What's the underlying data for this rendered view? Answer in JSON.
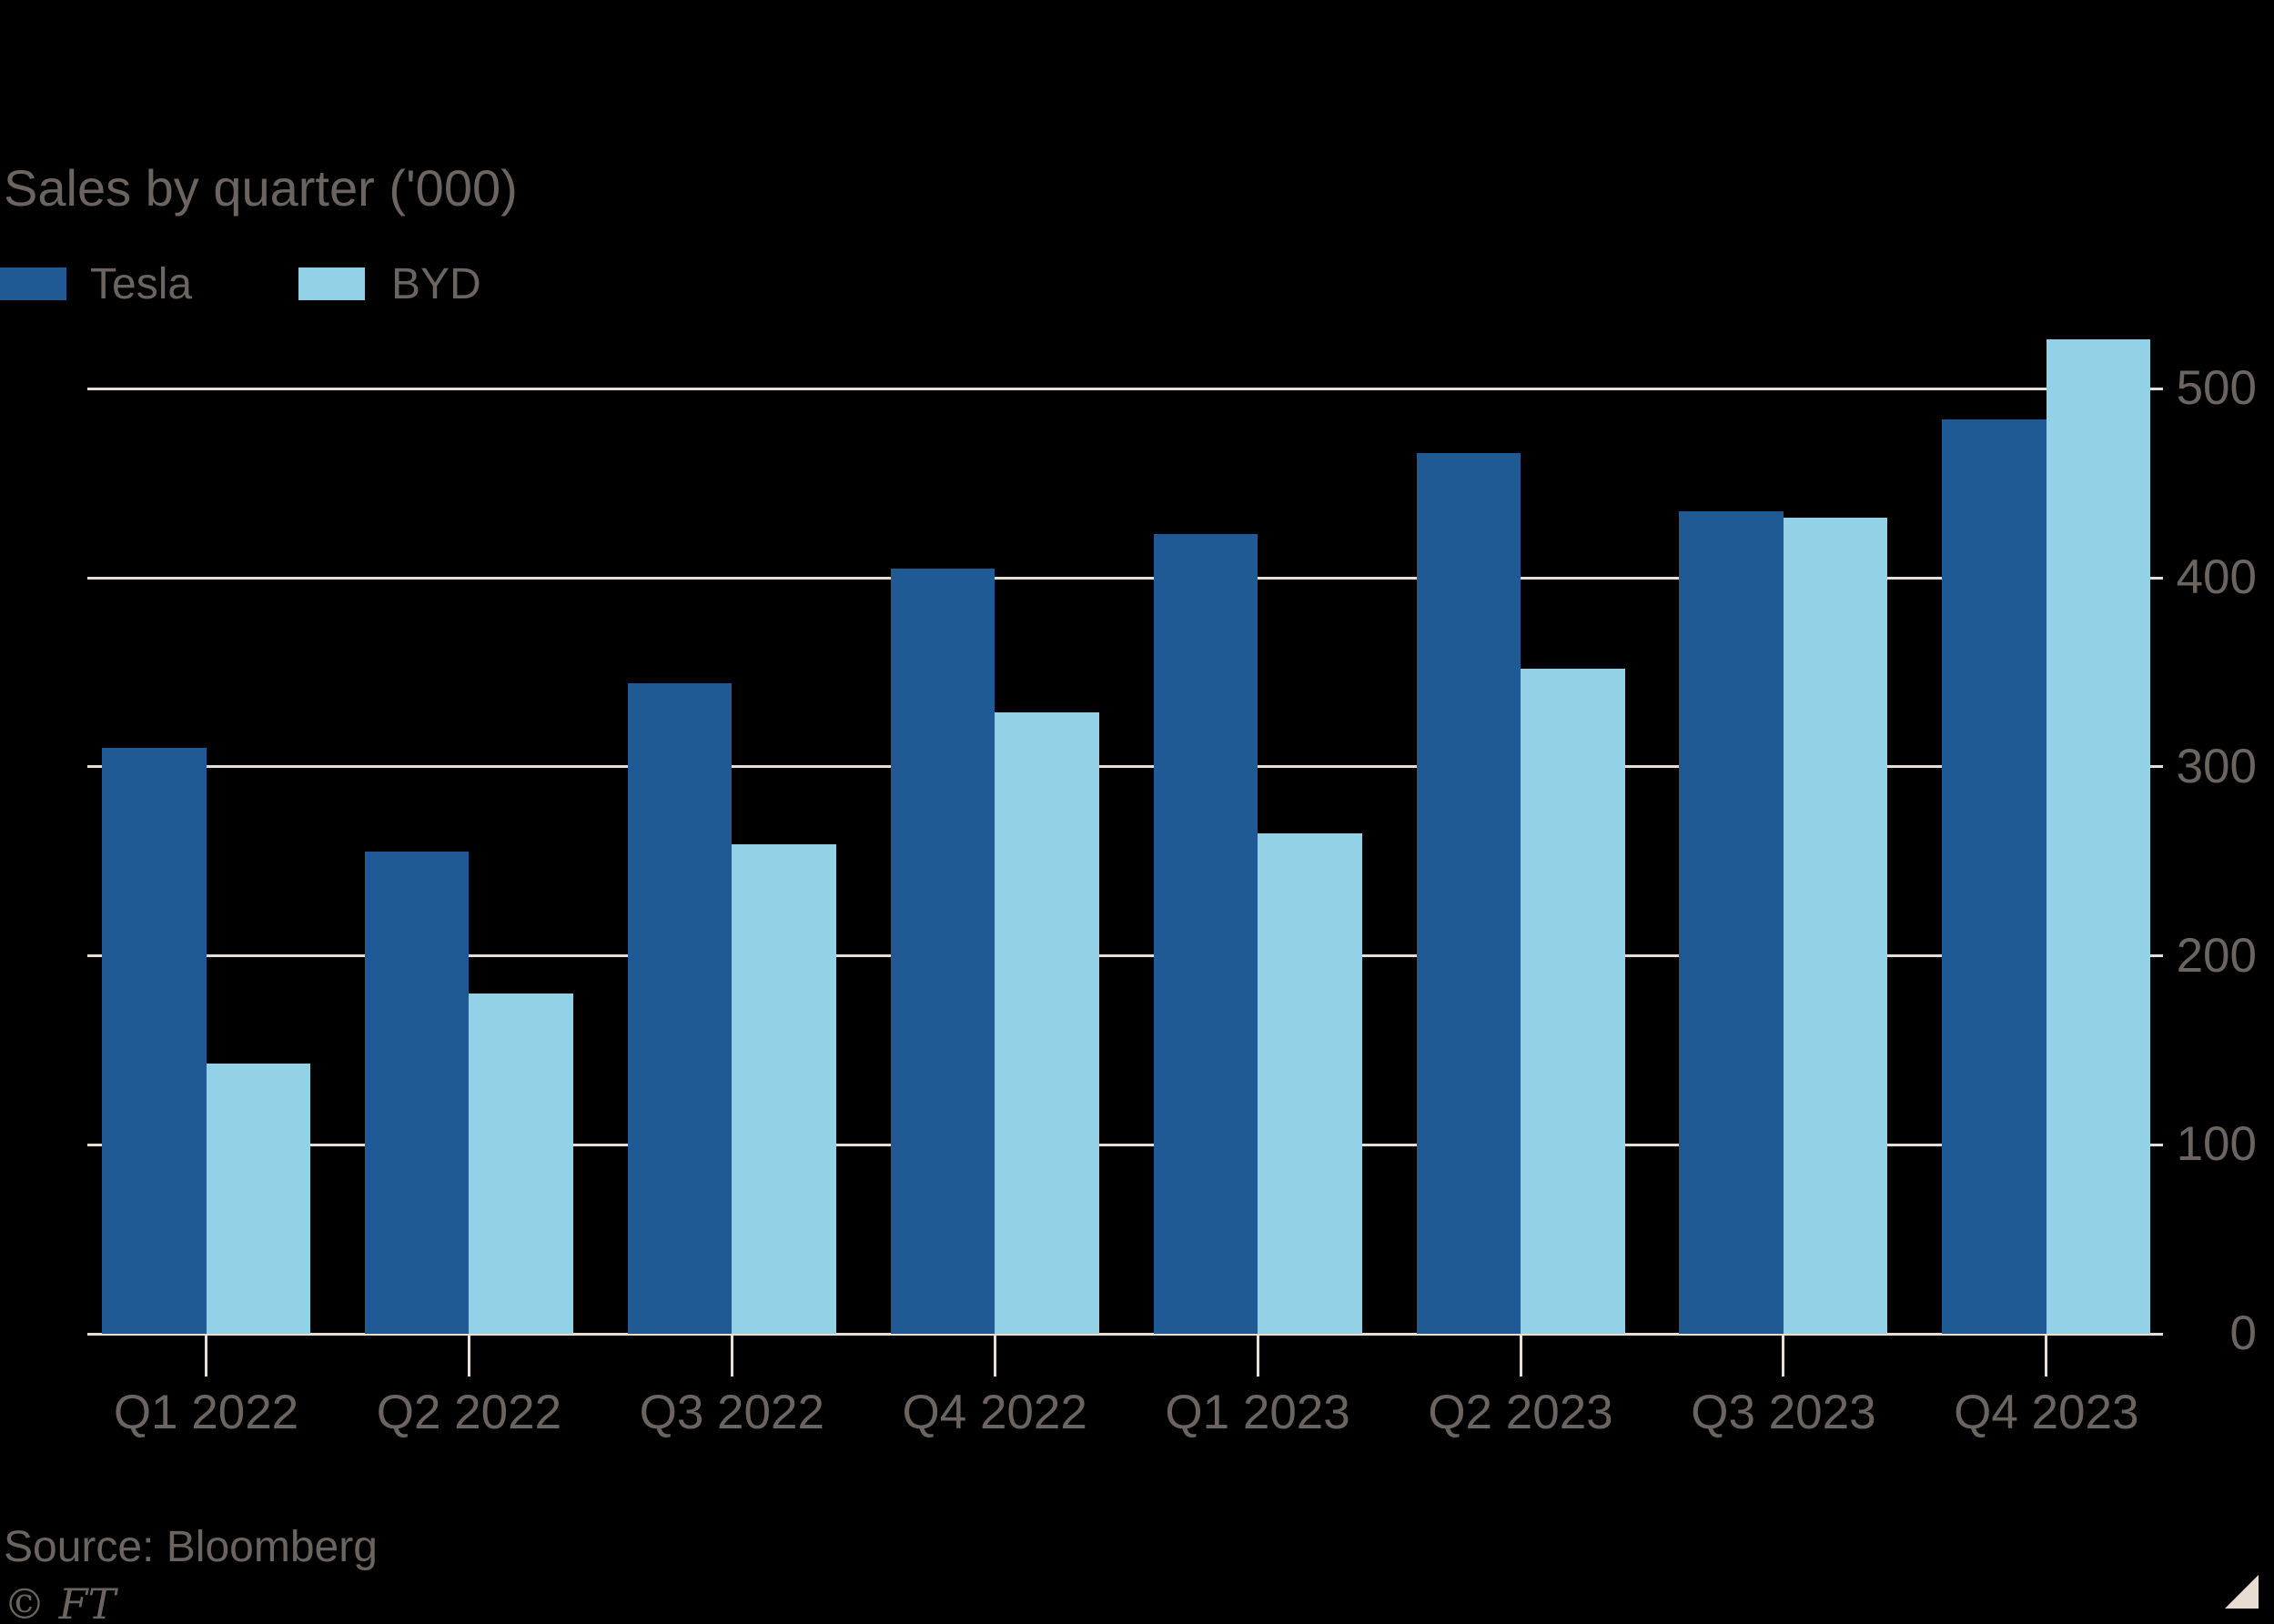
{
  "chart_data": {
    "type": "bar",
    "title": "Sales by quarter ('000)",
    "categories": [
      "Q1 2022",
      "Q2 2022",
      "Q3 2022",
      "Q4 2022",
      "Q1 2023",
      "Q2 2023",
      "Q3 2023",
      "Q4 2023"
    ],
    "series": [
      {
        "name": "Tesla",
        "color": "#1f5a94",
        "values": [
          310,
          255,
          344,
          405,
          423,
          466,
          435,
          484
        ]
      },
      {
        "name": "BYD",
        "color": "#93d1e6",
        "values": [
          143,
          180,
          259,
          329,
          265,
          352,
          432,
          526
        ]
      }
    ],
    "xlabel": "",
    "ylabel": "",
    "ylim": [
      0,
      550
    ],
    "yticks": [
      0,
      100,
      200,
      300,
      400,
      500
    ],
    "grid": "horizontal",
    "legend_position": "top-left"
  },
  "footer": {
    "source": "Source: Bloomberg",
    "copyright": "© FT"
  },
  "colors": {
    "background": "#000000",
    "grid": "#e8ddd2",
    "text": "#6b6460",
    "tesla": "#1f5a94",
    "byd": "#93d1e6",
    "ft_triangle": "#e8ddd2"
  }
}
